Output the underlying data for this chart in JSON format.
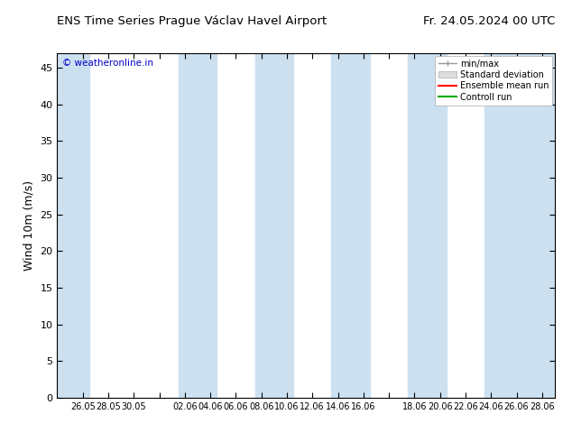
{
  "title_left": "ENS Time Series Prague Václav Havel Airport",
  "title_right": "Fr. 24.05.2024 00 UTC",
  "ylabel": "Wind 10m (m/s)",
  "watermark": "© weatheronline.in",
  "watermark_color": "#0000cc",
  "ylim": [
    0,
    47
  ],
  "yticks": [
    0,
    5,
    10,
    15,
    20,
    25,
    30,
    35,
    40,
    45
  ],
  "xtick_labels": [
    "26.05",
    "28.05",
    "30.05",
    "",
    "02.06",
    "04.06",
    "06.06",
    "08.06",
    "10.06",
    "12.06",
    "14.06",
    "16.06",
    "",
    "18.06",
    "20.06",
    "22.06",
    "24.06",
    "26.06",
    "28.06"
  ],
  "xtick_positions": [
    2,
    4,
    6,
    8,
    10,
    12,
    14,
    16,
    18,
    20,
    22,
    24,
    26,
    28,
    30,
    32,
    34,
    36,
    38
  ],
  "xlim": [
    0,
    39
  ],
  "shaded_band_color": "#cce0f0",
  "legend_labels": [
    "min/max",
    "Standard deviation",
    "Ensemble mean run",
    "Controll run"
  ],
  "legend_colors_line": [
    "#999999",
    "#cccccc",
    "#ff0000",
    "#00aa00"
  ],
  "background_color": "#ffffff",
  "shaded_regions": [
    [
      0,
      2.5
    ],
    [
      9.5,
      12.5
    ],
    [
      15.5,
      18.5
    ],
    [
      21.5,
      24.5
    ],
    [
      27.5,
      30.5
    ],
    [
      33.5,
      39
    ]
  ]
}
